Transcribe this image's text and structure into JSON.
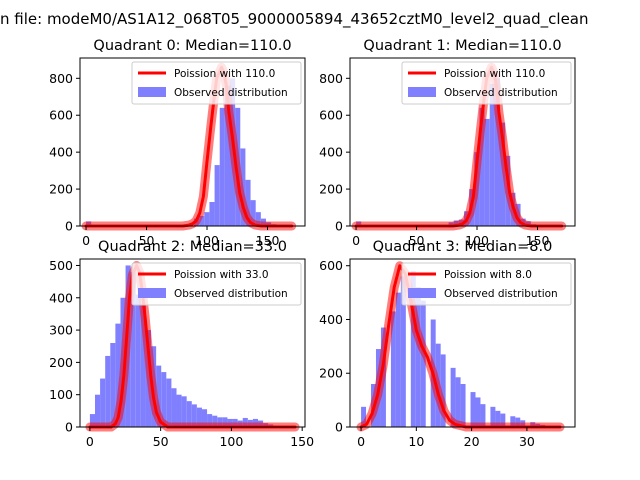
{
  "figure": {
    "suptitle": "n file: modeM0/AS1A12_068T05_9000005894_43652cztM0_level2_quad_clean"
  },
  "colors": {
    "observed": "#8080ff",
    "poisson": "#ff0000",
    "poisson_alpha": 0.5
  },
  "chart_data": [
    {
      "type": "bar",
      "title": "Quadrant 0: Median=110.0",
      "xlim": [
        -5,
        181
      ],
      "ylim": [
        0,
        910
      ],
      "xticks": [
        0,
        50,
        100,
        150
      ],
      "yticks": [
        0,
        200,
        400,
        600,
        800
      ],
      "legend": {
        "placement": "top-right",
        "entries": [
          "Poission with 110.0",
          "Observed distribution"
        ]
      },
      "observed": {
        "name": "Observed distribution",
        "bins": [
          0,
          4.25,
          8.5,
          12.75,
          17,
          21.25,
          25.5,
          29.75,
          34,
          38.25,
          42.5,
          46.75,
          51,
          55.25,
          59.5,
          63.75,
          68,
          72.25,
          76.5,
          80.75,
          85,
          89.25,
          93.5,
          97.75,
          102,
          106.25,
          110.5,
          114.75,
          119,
          123.25,
          127.5,
          131.75,
          136,
          140.25,
          144.5,
          148.75,
          153,
          157.25,
          161.5,
          165.75,
          170
        ],
        "counts": [
          25,
          0,
          0,
          0,
          0,
          0,
          0,
          0,
          0,
          0,
          0,
          0,
          0,
          0,
          0,
          0,
          0,
          0,
          0,
          0,
          0,
          40,
          55,
          75,
          130,
          330,
          640,
          760,
          800,
          640,
          420,
          250,
          140,
          75,
          40,
          20,
          10,
          5,
          2,
          0
        ]
      },
      "poisson": {
        "name": "Poission with 110.0",
        "x": [
          0,
          80,
          85,
          88,
          91,
          94,
          97,
          100,
          103,
          106,
          108,
          110,
          112,
          114,
          116,
          118,
          121,
          124,
          127,
          130,
          133,
          136,
          140,
          145,
          150,
          170
        ],
        "y": [
          0,
          0,
          5,
          12,
          28,
          70,
          160,
          350,
          530,
          700,
          800,
          830,
          860,
          830,
          760,
          620,
          480,
          320,
          180,
          100,
          45,
          18,
          5,
          0,
          0,
          0
        ]
      }
    },
    {
      "type": "bar",
      "title": "Quadrant 1: Median=110.0",
      "xlim": [
        -5,
        181
      ],
      "ylim": [
        0,
        910
      ],
      "xticks": [
        0,
        50,
        100,
        150
      ],
      "yticks": [
        0,
        200,
        400,
        600,
        800
      ],
      "legend": {
        "placement": "top-right",
        "entries": [
          "Poission with 110.0",
          "Observed distribution"
        ]
      },
      "observed": {
        "name": "Observed distribution",
        "bins": [
          0,
          4.25,
          8.5,
          12.75,
          17,
          21.25,
          25.5,
          29.75,
          34,
          38.25,
          42.5,
          46.75,
          51,
          55.25,
          59.5,
          63.75,
          68,
          72.25,
          76.5,
          80.75,
          85,
          89.25,
          93.5,
          97.75,
          102,
          106.25,
          110.5,
          114.75,
          119,
          123.25,
          127.5,
          131.75,
          136,
          140.25,
          144.5,
          148.75,
          153,
          157.25,
          161.5,
          165.75,
          170
        ],
        "counts": [
          25,
          0,
          0,
          0,
          0,
          0,
          0,
          0,
          0,
          0,
          0,
          0,
          0,
          0,
          0,
          0,
          0,
          0,
          20,
          30,
          35,
          80,
          200,
          400,
          640,
          580,
          770,
          800,
          560,
          380,
          180,
          120,
          40,
          25,
          10,
          5,
          2,
          0,
          0,
          0
        ]
      },
      "poisson": {
        "name": "Poission with 110.0",
        "x": [
          0,
          80,
          85,
          88,
          91,
          94,
          97,
          100,
          103,
          106,
          108,
          110,
          112,
          114,
          116,
          118,
          121,
          124,
          127,
          130,
          133,
          136,
          140,
          145,
          150,
          170
        ],
        "y": [
          0,
          0,
          5,
          12,
          28,
          70,
          160,
          350,
          530,
          700,
          800,
          830,
          860,
          830,
          760,
          620,
          480,
          320,
          180,
          100,
          45,
          18,
          5,
          0,
          0,
          0
        ]
      }
    },
    {
      "type": "bar",
      "title": "Quadrant 2: Median=33.0",
      "xlim": [
        -7,
        152
      ],
      "ylim": [
        0,
        520
      ],
      "xticks": [
        0,
        50,
        100,
        150
      ],
      "yticks": [
        0,
        100,
        200,
        300,
        400,
        500
      ],
      "legend": {
        "placement": "top-right",
        "entries": [
          "Poission with 33.0",
          "Observed distribution"
        ]
      },
      "observed": {
        "name": "Observed distribution",
        "bins": [
          0,
          3.6,
          7.2,
          10.8,
          14.4,
          18,
          21.6,
          25.2,
          28.8,
          32.4,
          36,
          39.6,
          43.2,
          46.8,
          50.4,
          54,
          57.6,
          61.2,
          64.8,
          68.4,
          72,
          75.6,
          79.2,
          82.8,
          86.4,
          90,
          93.6,
          97.2,
          100.8,
          104.4,
          108,
          111.6,
          115.2,
          118.8,
          122.4,
          126,
          129.6,
          133.2,
          136.8,
          140.4,
          144
        ],
        "counts": [
          40,
          100,
          150,
          220,
          260,
          320,
          400,
          500,
          480,
          410,
          380,
          300,
          250,
          190,
          170,
          150,
          120,
          100,
          95,
          80,
          70,
          60,
          55,
          40,
          35,
          30,
          30,
          25,
          25,
          20,
          28,
          22,
          25,
          20,
          12,
          8,
          3,
          2,
          1,
          0
        ]
      },
      "poisson": {
        "name": "Poission with 33.0",
        "x": [
          0,
          15,
          18,
          20,
          22,
          24,
          26,
          28,
          30,
          32,
          33,
          35,
          37,
          39,
          41,
          43,
          45,
          47,
          50,
          55,
          60,
          145
        ],
        "y": [
          0,
          0,
          10,
          30,
          80,
          160,
          280,
          400,
          470,
          490,
          500,
          480,
          420,
          340,
          250,
          160,
          90,
          45,
          15,
          0,
          0,
          0
        ]
      }
    },
    {
      "type": "bar",
      "title": "Quadrant 3: Median=8.0",
      "xlim": [
        -2,
        38.7
      ],
      "ylim": [
        0,
        625
      ],
      "xticks": [
        0,
        10,
        20,
        30
      ],
      "yticks": [
        0,
        200,
        400,
        600
      ],
      "legend": {
        "placement": "top-right",
        "entries": [
          "Poission with 8.0",
          "Observed distribution"
        ]
      },
      "observed": {
        "name": "Observed distribution",
        "bins": [
          0,
          0.9,
          1.8,
          2.7,
          3.6,
          4.5,
          5.4,
          6.3,
          7.2,
          8.1,
          9,
          9.9,
          10.8,
          11.7,
          12.6,
          13.5,
          14.4,
          15.3,
          16.2,
          17.1,
          18,
          18.9,
          19.8,
          20.7,
          21.6,
          22.5,
          23.4,
          24.3,
          25.2,
          26.1,
          27,
          27.9,
          28.8,
          29.7,
          30.6,
          31.5,
          32.4,
          33.3,
          34.2,
          35.1,
          36
        ],
        "counts": [
          75,
          0,
          160,
          290,
          370,
          0,
          430,
          500,
          560,
          0,
          580,
          520,
          470,
          0,
          400,
          310,
          270,
          0,
          220,
          185,
          160,
          0,
          130,
          110,
          85,
          0,
          75,
          60,
          50,
          0,
          40,
          35,
          25,
          0,
          18,
          12,
          8,
          0,
          5,
          3
        ]
      },
      "poisson": {
        "name": "Poission with 8.0",
        "x": [
          0,
          1,
          2,
          3,
          4,
          5,
          6,
          7,
          8,
          9,
          10,
          11,
          12,
          13,
          14,
          15,
          16,
          17,
          18,
          19,
          20,
          22,
          24,
          26,
          36
        ],
        "y": [
          0,
          10,
          50,
          120,
          230,
          380,
          520,
          600,
          570,
          470,
          360,
          300,
          260,
          200,
          120,
          60,
          25,
          10,
          5,
          0,
          0,
          0,
          0,
          0,
          0
        ]
      }
    }
  ]
}
